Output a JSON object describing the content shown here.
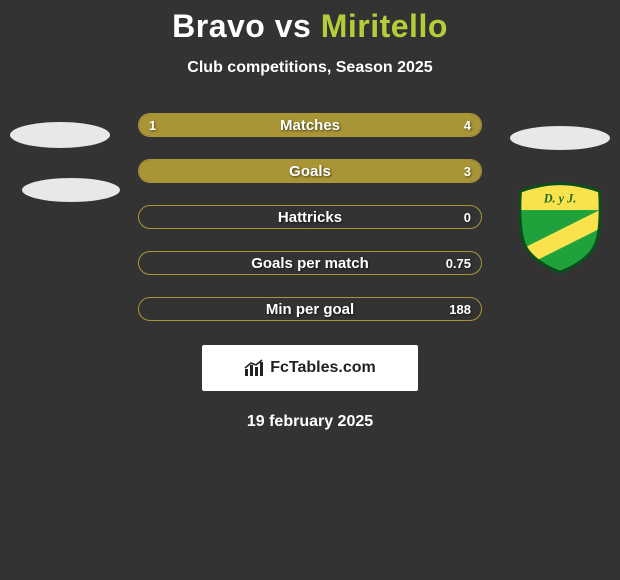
{
  "colors": {
    "background": "#333333",
    "accent": "#a99536",
    "text": "#ffffff",
    "player2_title": "#b6cd3a",
    "box_bg": "#ffffff",
    "box_text": "#222222",
    "badge_green": "#1fa23c",
    "badge_yellow": "#f9e24b",
    "badge_outline": "#0c4f1c"
  },
  "header": {
    "player1": "Bravo",
    "vs": "vs",
    "player2": "Miritello",
    "subtitle": "Club competitions, Season 2025"
  },
  "stats": {
    "rows": [
      {
        "label": "Matches",
        "left": "1",
        "right": "4",
        "left_pct": 20,
        "right_pct": 80,
        "fill": "split"
      },
      {
        "label": "Goals",
        "left": "",
        "right": "3",
        "left_pct": 0,
        "right_pct": 100,
        "fill": "full"
      },
      {
        "label": "Hattricks",
        "left": "",
        "right": "0",
        "left_pct": 0,
        "right_pct": 0,
        "fill": "none"
      },
      {
        "label": "Goals per match",
        "left": "",
        "right": "0.75",
        "left_pct": 0,
        "right_pct": 0,
        "fill": "none"
      },
      {
        "label": "Min per goal",
        "left": "",
        "right": "188",
        "left_pct": 0,
        "right_pct": 0,
        "fill": "none"
      }
    ]
  },
  "footer": {
    "brand": "FcTables.com",
    "date": "19 february 2025"
  },
  "badge": {
    "text_top": "D. y J."
  }
}
